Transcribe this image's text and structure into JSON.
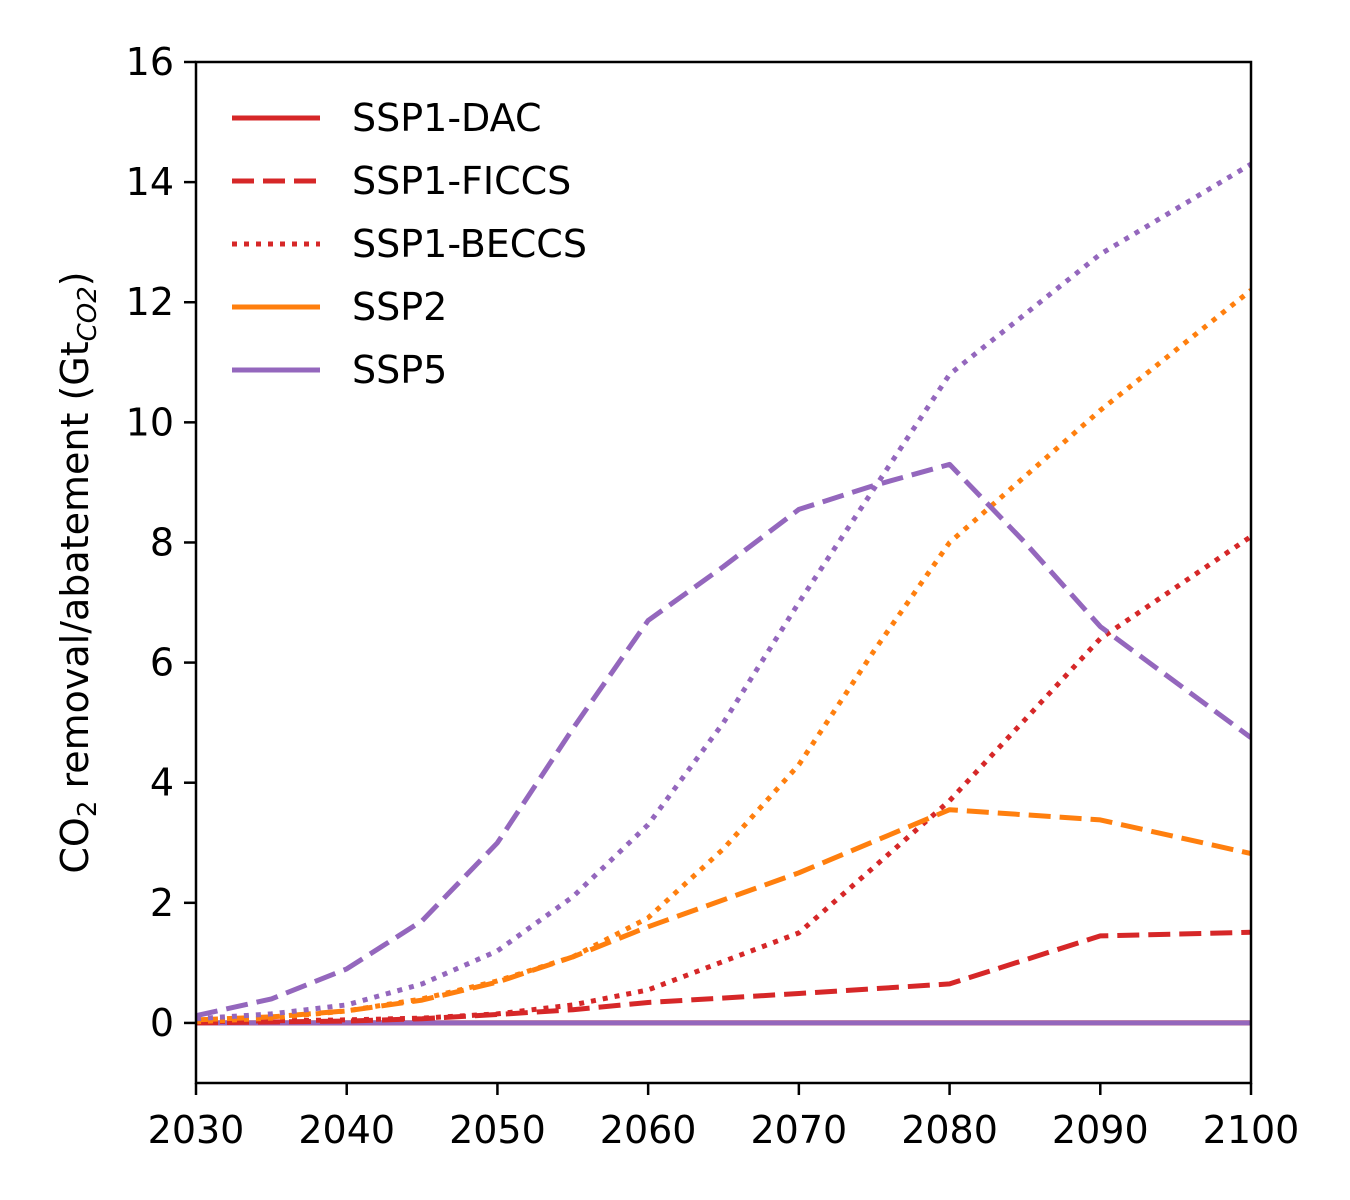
{
  "chart_data": {
    "type": "line",
    "xlabel": "",
    "ylabel": {
      "parts": [
        {
          "text": "CO",
          "style": "normal"
        },
        {
          "text": "2",
          "style": "sub"
        },
        {
          "text": " removal/abatement (Gt",
          "style": "normal"
        },
        {
          "text": "CO2",
          "style": "sub-italic"
        },
        {
          "text": ")",
          "style": "normal"
        }
      ]
    },
    "xlim": [
      2030,
      2100
    ],
    "ylim": [
      -1,
      16
    ],
    "xticks": [
      2030,
      2040,
      2050,
      2060,
      2070,
      2080,
      2090,
      2100
    ],
    "yticks": [
      0,
      2,
      4,
      6,
      8,
      10,
      12,
      14,
      16
    ],
    "grid": false,
    "legend_position": "top-left",
    "colors": {
      "ssp1": "#d62728",
      "ssp2": "#ff7f0e",
      "ssp5": "#9467bd"
    },
    "legend": [
      {
        "label": "SSP1-DAC",
        "color": "#d62728",
        "dash": "solid"
      },
      {
        "label": "SSP1-FICCS",
        "color": "#d62728",
        "dash": "dashed"
      },
      {
        "label": "SSP1-BECCS",
        "color": "#d62728",
        "dash": "dotted"
      },
      {
        "label": "SSP2",
        "color": "#ff7f0e",
        "dash": "solid"
      },
      {
        "label": "SSP5",
        "color": "#9467bd",
        "dash": "solid"
      }
    ],
    "series": [
      {
        "id": "ssp2-dac",
        "color": "#ff7f0e",
        "dash": "solid",
        "x": [
          2030,
          2100
        ],
        "y": [
          0,
          0
        ]
      },
      {
        "id": "ssp1-dac",
        "color": "#d62728",
        "dash": "solid",
        "x": [
          2030,
          2100
        ],
        "y": [
          0,
          0
        ]
      },
      {
        "id": "ssp5-dac",
        "color": "#9467bd",
        "dash": "solid",
        "x": [
          2030,
          2100
        ],
        "y": [
          0,
          0
        ]
      },
      {
        "id": "ssp1-beccs",
        "color": "#d62728",
        "dash": "dotted",
        "x": [
          2030,
          2040,
          2045,
          2050,
          2055,
          2060,
          2070,
          2080,
          2090,
          2100
        ],
        "y": [
          0.02,
          0.05,
          0.08,
          0.15,
          0.3,
          0.55,
          1.5,
          3.7,
          6.4,
          8.1
        ]
      },
      {
        "id": "ssp1-ficcs",
        "color": "#d62728",
        "dash": "dashed",
        "x": [
          2030,
          2040,
          2045,
          2050,
          2055,
          2060,
          2070,
          2080,
          2090,
          2100
        ],
        "y": [
          0.0,
          0.03,
          0.07,
          0.14,
          0.22,
          0.34,
          0.49,
          0.65,
          1.45,
          1.51
        ]
      },
      {
        "id": "ssp2-beccs",
        "color": "#ff7f0e",
        "dash": "dotted",
        "x": [
          2030,
          2035,
          2040,
          2045,
          2050,
          2055,
          2060,
          2065,
          2070,
          2075,
          2080,
          2090,
          2100
        ],
        "y": [
          0.02,
          0.08,
          0.2,
          0.4,
          0.7,
          1.1,
          1.75,
          2.9,
          4.3,
          6.2,
          8.0,
          10.2,
          12.2
        ]
      },
      {
        "id": "ssp2-ficcs",
        "color": "#ff7f0e",
        "dash": "dashed",
        "x": [
          2030,
          2035,
          2040,
          2045,
          2050,
          2055,
          2060,
          2070,
          2080,
          2090,
          2100
        ],
        "y": [
          0.05,
          0.1,
          0.2,
          0.38,
          0.68,
          1.1,
          1.6,
          2.5,
          3.55,
          3.38,
          2.82
        ]
      },
      {
        "id": "ssp5-beccs",
        "color": "#9467bd",
        "dash": "dotted",
        "x": [
          2030,
          2035,
          2040,
          2045,
          2050,
          2055,
          2060,
          2065,
          2070,
          2075,
          2080,
          2090,
          2100
        ],
        "y": [
          0.07,
          0.15,
          0.3,
          0.65,
          1.2,
          2.1,
          3.3,
          5.0,
          7.0,
          8.9,
          10.8,
          12.8,
          14.3
        ]
      },
      {
        "id": "ssp5-ficcs",
        "color": "#9467bd",
        "dash": "dashed",
        "x": [
          2030,
          2035,
          2040,
          2045,
          2050,
          2055,
          2060,
          2065,
          2070,
          2075,
          2080,
          2085,
          2090,
          2100
        ],
        "y": [
          0.12,
          0.4,
          0.9,
          1.7,
          3.0,
          4.9,
          6.7,
          7.6,
          8.55,
          8.95,
          9.3,
          8.0,
          6.6,
          4.75
        ]
      }
    ]
  }
}
